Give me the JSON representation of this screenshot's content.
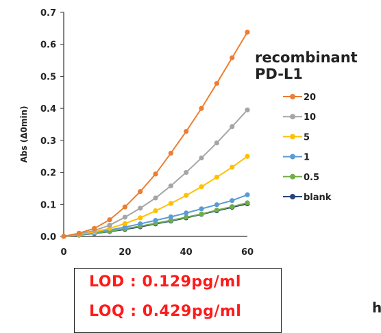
{
  "chart_data": {
    "type": "line",
    "title": "",
    "ylabel": "Abs  (Δ0min)",
    "xlabel": "",
    "x": [
      0,
      5,
      10,
      15,
      20,
      25,
      30,
      35,
      40,
      45,
      50,
      55,
      60
    ],
    "xlim": [
      0,
      60
    ],
    "ylim": [
      0,
      0.7
    ],
    "xticks": [
      "0",
      "20",
      "40",
      "60"
    ],
    "yticks": [
      "0.0",
      "0.1",
      "0.2",
      "0.3",
      "0.4",
      "0.5",
      "0.6",
      "0.7"
    ],
    "grid": false,
    "legend_title": "recombinant\nPD-L1",
    "legend_position": "right",
    "series": [
      {
        "name": "20",
        "color": "#ED7D31",
        "values": [
          0,
          0.01,
          0.025,
          0.052,
          0.092,
          0.14,
          0.195,
          0.26,
          0.328,
          0.4,
          0.478,
          0.558,
          0.638
        ]
      },
      {
        "name": "10",
        "color": "#A5A5A5",
        "values": [
          0,
          0.008,
          0.018,
          0.035,
          0.06,
          0.088,
          0.12,
          0.158,
          0.2,
          0.245,
          0.292,
          0.343,
          0.395
        ]
      },
      {
        "name": "5",
        "color": "#FFC000",
        "values": [
          0,
          0.006,
          0.014,
          0.025,
          0.04,
          0.058,
          0.08,
          0.103,
          0.128,
          0.155,
          0.185,
          0.216,
          0.25
        ]
      },
      {
        "name": "1",
        "color": "#5B9BD5",
        "values": [
          0,
          0.005,
          0.011,
          0.02,
          0.029,
          0.039,
          0.05,
          0.061,
          0.073,
          0.086,
          0.099,
          0.112,
          0.13
        ]
      },
      {
        "name": "0.5",
        "color": "#70AD47",
        "values": [
          0,
          0.004,
          0.01,
          0.016,
          0.024,
          0.032,
          0.041,
          0.05,
          0.06,
          0.07,
          0.082,
          0.093,
          0.105
        ]
      },
      {
        "name": "blank",
        "color": "#264478",
        "values": [
          0,
          0.004,
          0.009,
          0.015,
          0.022,
          0.03,
          0.039,
          0.048,
          0.058,
          0.069,
          0.08,
          0.091,
          0.102
        ]
      }
    ]
  },
  "annotations": {
    "lod": "LOD : 0.129pg/ml",
    "loq": "LOQ : 0.429pg/ml",
    "stray_text": "h"
  }
}
